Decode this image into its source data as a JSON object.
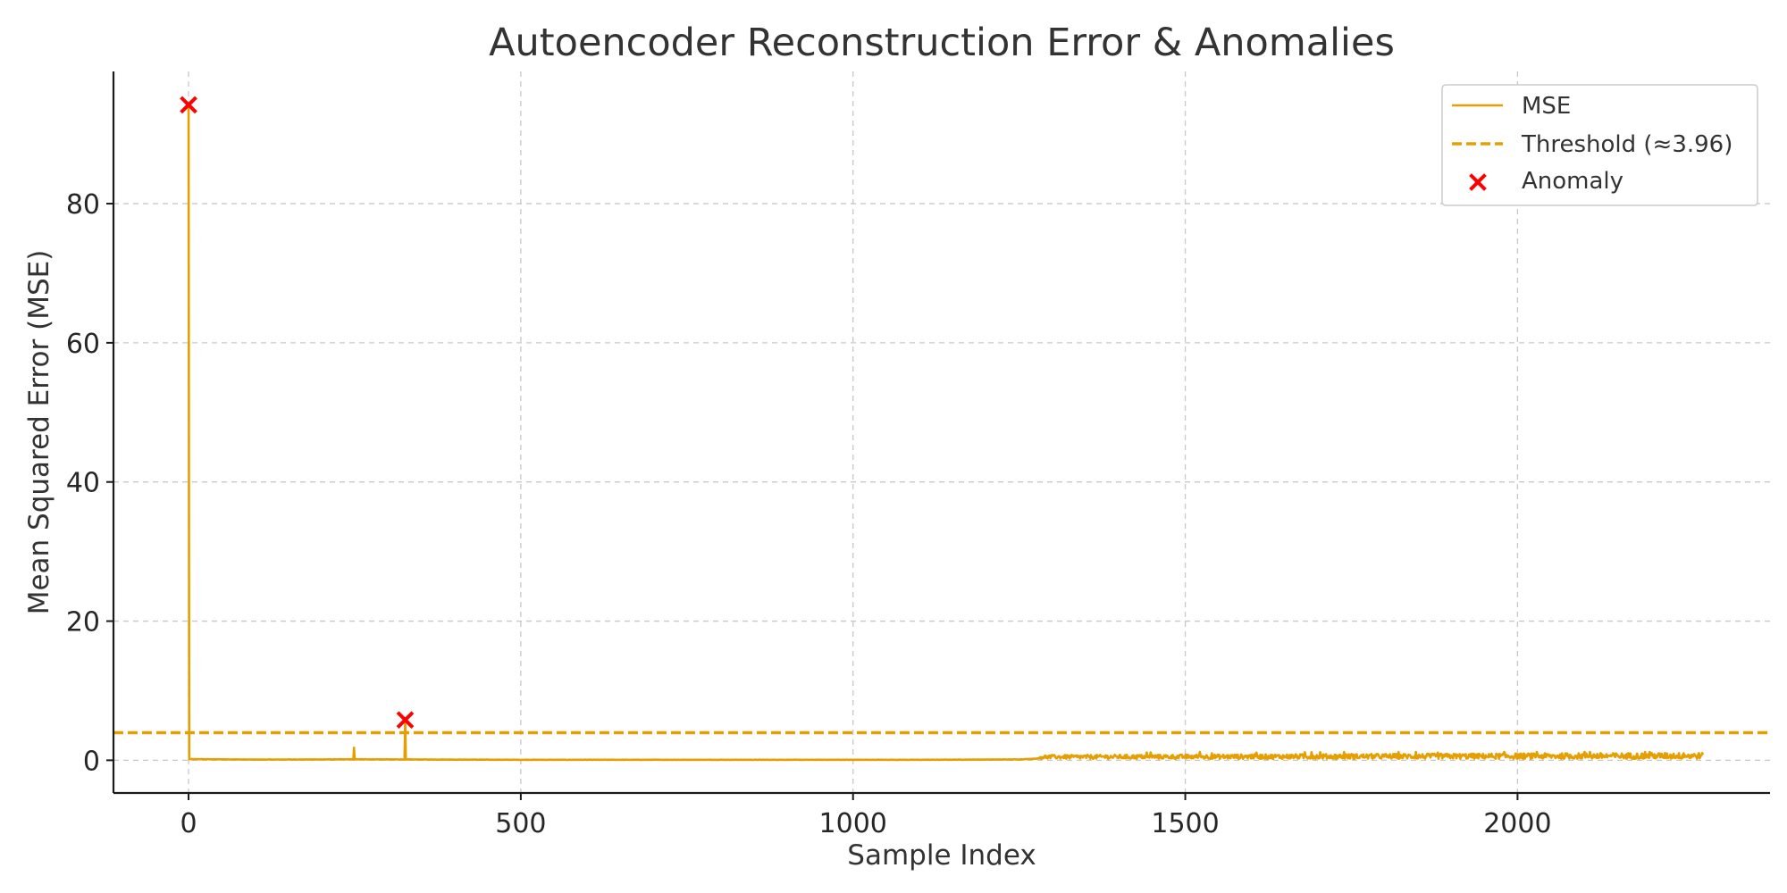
{
  "chart_data": {
    "type": "line",
    "title": "Autoencoder Reconstruction Error & Anomalies",
    "xlabel": "Sample Index",
    "ylabel": "Mean Squared Error (MSE)",
    "xlim": [
      -113,
      2380
    ],
    "ylim": [
      -4.7,
      99
    ],
    "x_ticks": [
      0,
      500,
      1000,
      1500,
      2000
    ],
    "x_tick_labels": [
      "0",
      "500",
      "1000",
      "1500",
      "2000"
    ],
    "y_ticks": [
      0,
      20,
      40,
      60,
      80
    ],
    "y_tick_labels": [
      "0",
      "20",
      "40",
      "60",
      "80"
    ],
    "grid": true,
    "legend_position": "top-right",
    "colors": {
      "mse": "#e69f00",
      "threshold": "#e69f00",
      "anomaly": "#ff0000"
    },
    "series": [
      {
        "name": "MSE",
        "kind": "line",
        "n_samples": 2280,
        "points": [
          [
            0,
            94.2
          ],
          [
            1,
            0.15
          ],
          [
            100,
            0.08
          ],
          [
            200,
            0.1
          ],
          [
            248,
            0.12
          ],
          [
            249,
            1.8
          ],
          [
            250,
            0.12
          ],
          [
            325,
            0.1
          ],
          [
            326,
            5.8
          ],
          [
            327,
            0.1
          ],
          [
            500,
            0.05
          ],
          [
            800,
            0.05
          ],
          [
            1000,
            0.05
          ],
          [
            1100,
            0.05
          ],
          [
            1250,
            0.1
          ],
          [
            1380,
            0.7
          ],
          [
            1540,
            1.0
          ],
          [
            1600,
            0.8
          ],
          [
            1750,
            0.9
          ],
          [
            1880,
            1.1
          ],
          [
            1980,
            1.2
          ],
          [
            2100,
            0.9
          ],
          [
            2250,
            1.0
          ],
          [
            2279,
            0.8
          ]
        ]
      },
      {
        "name": "Threshold (≈3.96)",
        "kind": "hline",
        "value": 3.96
      },
      {
        "name": "Anomaly",
        "kind": "scatter",
        "points": [
          [
            0,
            94.2
          ],
          [
            326,
            5.8
          ]
        ]
      }
    ]
  }
}
